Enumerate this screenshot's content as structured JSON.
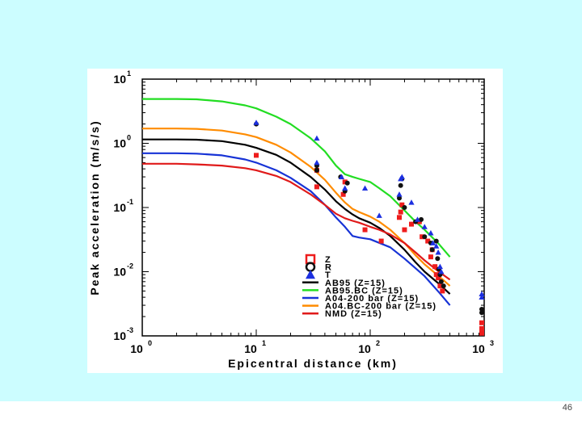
{
  "slide": {
    "page_number": "46",
    "background_color": "#ccfdff"
  },
  "chart_data": {
    "type": "scatter",
    "title": "",
    "xlabel": "Epicentral distance (km)",
    "ylabel": "Peak acceleration (m/s/s)",
    "xscale": "log",
    "yscale": "log",
    "xlim": [
      1,
      1000
    ],
    "ylim": [
      0.001,
      10
    ],
    "x_tick_labels": [
      {
        "base": "10",
        "exp": "0",
        "value": 1
      },
      {
        "base": "10",
        "exp": "1",
        "value": 10
      },
      {
        "base": "10",
        "exp": "2",
        "value": 100
      },
      {
        "base": "10",
        "exp": "3",
        "value": 1000
      }
    ],
    "y_tick_labels": [
      {
        "base": "10",
        "exp": "-3",
        "value": 0.001
      },
      {
        "base": "10",
        "exp": "-2",
        "value": 0.01
      },
      {
        "base": "10",
        "exp": "-1",
        "value": 0.1
      },
      {
        "base": "10",
        "exp": "0",
        "value": 1
      },
      {
        "base": "10",
        "exp": "1",
        "value": 10
      }
    ],
    "legend_position": "bottom-center",
    "observations": [
      {
        "name": "Z",
        "marker": "square",
        "color": "#ee1c1c",
        "points": [
          [
            10,
            0.65
          ],
          [
            34,
            0.21
          ],
          [
            34,
            0.38
          ],
          [
            58,
            0.16
          ],
          [
            60,
            0.25
          ],
          [
            90,
            0.045
          ],
          [
            125,
            0.03
          ],
          [
            180,
            0.07
          ],
          [
            185,
            0.085
          ],
          [
            190,
            0.11
          ],
          [
            200,
            0.045
          ],
          [
            230,
            0.055
          ],
          [
            270,
            0.06
          ],
          [
            285,
            0.035
          ],
          [
            320,
            0.03
          ],
          [
            340,
            0.017
          ],
          [
            350,
            0.022
          ],
          [
            370,
            0.012
          ],
          [
            380,
            0.009
          ],
          [
            395,
            0.008
          ],
          [
            410,
            0.006
          ],
          [
            430,
            0.005
          ],
          [
            1000,
            0.0016
          ],
          [
            1000,
            0.0013
          ],
          [
            1000,
            0.0011
          ]
        ]
      },
      {
        "name": "R",
        "marker": "circle",
        "color": "#111111",
        "points": [
          [
            10,
            2.0
          ],
          [
            34,
            0.45
          ],
          [
            34,
            0.38
          ],
          [
            55,
            0.3
          ],
          [
            60,
            0.18
          ],
          [
            63,
            0.24
          ],
          [
            180,
            0.14
          ],
          [
            185,
            0.22
          ],
          [
            190,
            0.28
          ],
          [
            200,
            0.1
          ],
          [
            250,
            0.06
          ],
          [
            280,
            0.065
          ],
          [
            300,
            0.035
          ],
          [
            340,
            0.028
          ],
          [
            350,
            0.022
          ],
          [
            380,
            0.03
          ],
          [
            390,
            0.016
          ],
          [
            400,
            0.011
          ],
          [
            410,
            0.009
          ],
          [
            420,
            0.007
          ],
          [
            440,
            0.006
          ],
          [
            1000,
            0.0026
          ],
          [
            1000,
            0.0023
          ]
        ]
      },
      {
        "name": "T",
        "marker": "triangle",
        "color": "#1c2fe0",
        "points": [
          [
            10,
            2.1
          ],
          [
            34,
            1.2
          ],
          [
            34,
            0.5
          ],
          [
            56,
            0.3
          ],
          [
            60,
            0.2
          ],
          [
            90,
            0.2
          ],
          [
            120,
            0.075
          ],
          [
            180,
            0.16
          ],
          [
            185,
            0.28
          ],
          [
            190,
            0.3
          ],
          [
            230,
            0.12
          ],
          [
            260,
            0.065
          ],
          [
            300,
            0.05
          ],
          [
            340,
            0.04
          ],
          [
            355,
            0.028
          ],
          [
            380,
            0.025
          ],
          [
            395,
            0.02
          ],
          [
            410,
            0.012
          ],
          [
            420,
            0.01
          ],
          [
            1000,
            0.0045
          ],
          [
            1000,
            0.004
          ]
        ]
      }
    ],
    "series": [
      {
        "name": "AB95 (Z=15)",
        "color": "#000000",
        "x": [
          1,
          2,
          3,
          5,
          8,
          10,
          15,
          20,
          30,
          40,
          50,
          60,
          70,
          80,
          100,
          120,
          150,
          200,
          250,
          300,
          400,
          500
        ],
        "y": [
          1.15,
          1.15,
          1.14,
          1.08,
          0.95,
          0.85,
          0.66,
          0.5,
          0.3,
          0.19,
          0.125,
          0.095,
          0.078,
          0.068,
          0.058,
          0.048,
          0.036,
          0.022,
          0.014,
          0.01,
          0.0065,
          0.0045
        ]
      },
      {
        "name": "AB95.BC (Z=15)",
        "color": "#22dd22",
        "x": [
          1,
          2,
          3,
          5,
          8,
          10,
          15,
          20,
          30,
          40,
          50,
          60,
          70,
          80,
          100,
          120,
          150,
          200,
          250,
          300,
          400,
          500
        ],
        "y": [
          4.9,
          4.9,
          4.85,
          4.5,
          3.9,
          3.5,
          2.6,
          2.0,
          1.2,
          0.75,
          0.45,
          0.33,
          0.3,
          0.28,
          0.25,
          0.2,
          0.15,
          0.09,
          0.06,
          0.045,
          0.027,
          0.017
        ]
      },
      {
        "name": "A04-200 bar (Z=15)",
        "color": "#1733d6",
        "x": [
          1,
          2,
          3,
          5,
          8,
          10,
          15,
          20,
          30,
          40,
          50,
          60,
          70,
          80,
          100,
          150,
          200,
          300,
          400,
          500
        ],
        "y": [
          0.7,
          0.7,
          0.69,
          0.65,
          0.56,
          0.5,
          0.38,
          0.29,
          0.18,
          0.11,
          0.07,
          0.05,
          0.036,
          0.034,
          0.032,
          0.024,
          0.016,
          0.0085,
          0.0048,
          0.003
        ]
      },
      {
        "name": "A04.BC-200 bar (Z=15)",
        "color": "#ff8c00",
        "x": [
          1,
          2,
          3,
          5,
          8,
          10,
          15,
          20,
          30,
          40,
          50,
          60,
          70,
          80,
          100,
          120,
          150,
          200,
          250,
          300,
          400,
          500
        ],
        "y": [
          1.7,
          1.7,
          1.68,
          1.58,
          1.38,
          1.25,
          0.95,
          0.72,
          0.43,
          0.27,
          0.17,
          0.12,
          0.095,
          0.085,
          0.072,
          0.06,
          0.045,
          0.028,
          0.018,
          0.013,
          0.0085,
          0.006
        ]
      },
      {
        "name": "NMD (Z=15)",
        "color": "#e01a1a",
        "x": [
          1,
          2,
          3,
          5,
          8,
          10,
          15,
          20,
          30,
          40,
          50,
          60,
          70,
          80,
          100,
          120,
          150,
          200,
          250,
          300,
          400,
          500
        ],
        "y": [
          0.48,
          0.48,
          0.47,
          0.45,
          0.41,
          0.38,
          0.31,
          0.25,
          0.16,
          0.11,
          0.08,
          0.068,
          0.062,
          0.058,
          0.05,
          0.045,
          0.038,
          0.028,
          0.02,
          0.015,
          0.01,
          0.0075
        ]
      }
    ]
  }
}
